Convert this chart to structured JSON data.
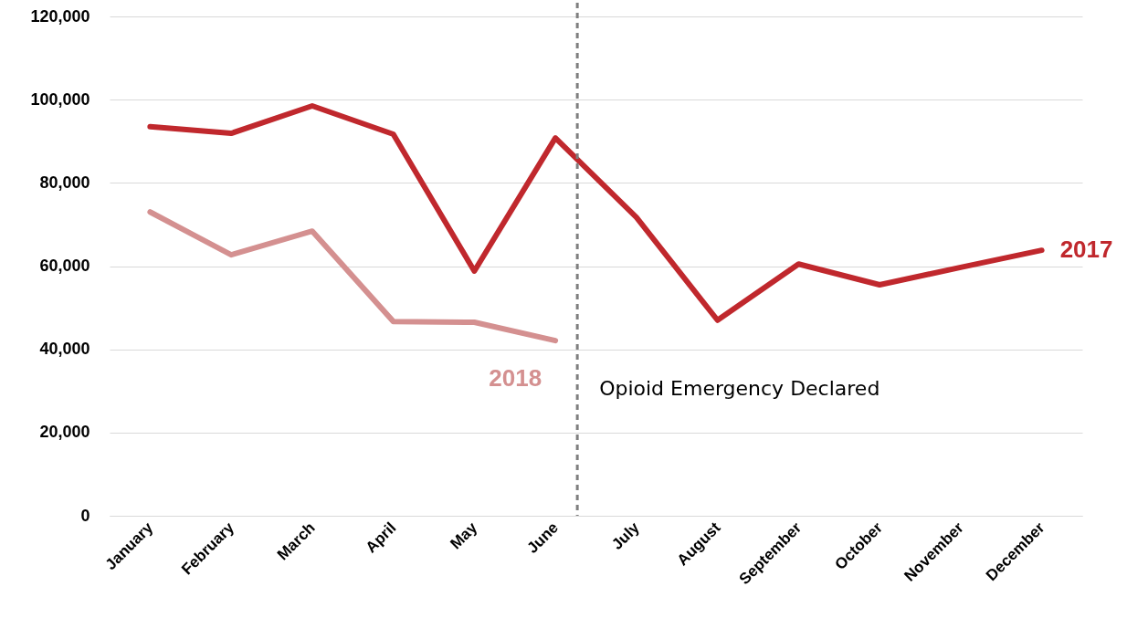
{
  "chart_data": {
    "type": "line",
    "categories": [
      "January",
      "February",
      "March",
      "April",
      "May",
      "June",
      "July",
      "August",
      "September",
      "October",
      "November",
      "December"
    ],
    "series": [
      {
        "name": "2017",
        "color": "#c0282d",
        "values": [
          93500,
          91900,
          98500,
          91700,
          58800,
          90800,
          71700,
          47000,
          60500,
          55500,
          59700,
          63800
        ]
      },
      {
        "name": "2018",
        "color": "#d49090",
        "values": [
          73000,
          62700,
          68400,
          46700,
          46500,
          42100,
          null,
          null,
          null,
          null,
          null,
          null
        ]
      }
    ],
    "ylim": [
      0,
      120000
    ],
    "yticks": [
      0,
      {
        "value": 20000,
        "label": "20,000"
      },
      {
        "value": 40000,
        "label": "40,000"
      },
      {
        "value": 60000,
        "label": "60,000"
      },
      {
        "value": 80000,
        "label": "80,000"
      },
      {
        "value": 100000,
        "label": "100,000"
      },
      {
        "value": 120000,
        "label": "120,000"
      }
    ],
    "grid": "y",
    "marker": "none",
    "line_style": "solid",
    "ref_lines": [
      {
        "axis": "x",
        "value": "June",
        "label": "Opioid Emergency Declared",
        "color": "#7f7f7f",
        "line_style": "dashed"
      }
    ]
  }
}
